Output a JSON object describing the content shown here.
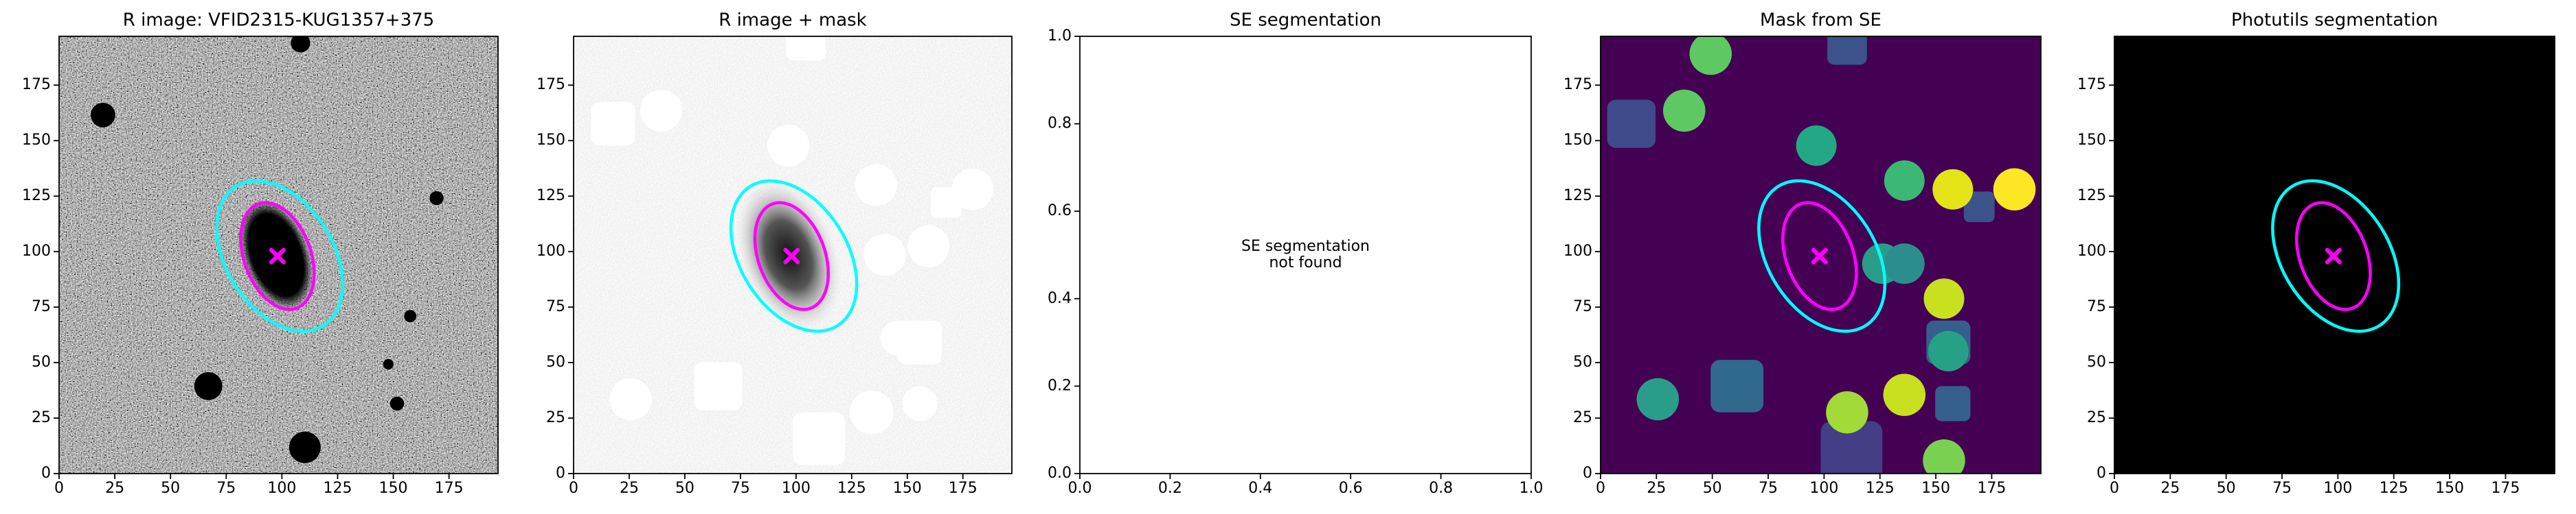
{
  "chart_data": [
    {
      "type": "image",
      "cmap": "gray",
      "title": "R image: VFID2315-KUG1357+375",
      "xlim": [
        0,
        197
      ],
      "ylim": [
        0,
        197
      ],
      "xticks": [
        0,
        25,
        50,
        75,
        100,
        125,
        150,
        175
      ],
      "yticks": [
        0,
        25,
        50,
        75,
        100,
        125,
        150,
        175
      ],
      "ellipses": [
        {
          "color": "#ff00ff",
          "x": 98,
          "y": 98,
          "width": 30,
          "height": 50,
          "angle": 20
        },
        {
          "color": "#00ffff",
          "x": 99,
          "y": 98,
          "width": 48,
          "height": 74,
          "angle": 32
        }
      ],
      "marker": {
        "color": "#ff00ff",
        "x": 98,
        "y": 98
      }
    },
    {
      "type": "image",
      "cmap": "gray_r",
      "title": "R image + mask",
      "xlim": [
        0,
        197
      ],
      "ylim": [
        0,
        197
      ],
      "xticks": [
        0,
        25,
        50,
        75,
        100,
        125,
        150,
        175
      ],
      "yticks": [
        0,
        25,
        50,
        75,
        100,
        125,
        150,
        175
      ],
      "ellipses": [
        {
          "color": "#ff00ff",
          "x": 98,
          "y": 98,
          "width": 30,
          "height": 50,
          "angle": 20
        },
        {
          "color": "#00ffff",
          "x": 99,
          "y": 98,
          "width": 48,
          "height": 74,
          "angle": 32
        }
      ],
      "marker": {
        "color": "#ff00ff",
        "x": 98,
        "y": 98
      }
    },
    {
      "type": "empty",
      "title": "SE segmentation",
      "xlim": [
        0,
        1
      ],
      "ylim": [
        0,
        1
      ],
      "xticks": [
        {
          "value": 0,
          "label": "0.0"
        },
        0.2,
        0.4,
        0.6,
        0.8,
        {
          "value": 1,
          "label": "1.0"
        }
      ],
      "yticks": [
        {
          "value": 0,
          "label": "0.0"
        },
        0.2,
        0.4,
        0.6,
        0.8,
        {
          "value": 1,
          "label": "1.0"
        }
      ],
      "annotation": [
        "SE segmentation",
        "not found"
      ]
    },
    {
      "type": "image",
      "cmap": "viridis",
      "title": "Mask from SE",
      "xlim": [
        0,
        197
      ],
      "ylim": [
        0,
        197
      ],
      "xticks": [
        0,
        25,
        50,
        75,
        100,
        125,
        150,
        175
      ],
      "yticks": [
        0,
        25,
        50,
        75,
        100,
        125,
        150,
        175
      ],
      "ellipses": [
        {
          "color": "#ff00ff",
          "x": 98,
          "y": 98,
          "width": 30,
          "height": 50,
          "angle": 20
        },
        {
          "color": "#00ffff",
          "x": 99,
          "y": 98,
          "width": 48,
          "height": 74,
          "angle": 32
        }
      ],
      "marker": {
        "color": "#ff00ff",
        "x": 98,
        "y": 98
      }
    },
    {
      "type": "image",
      "cmap": "black",
      "title": "Photutils segmentation",
      "xlim": [
        0,
        197
      ],
      "ylim": [
        0,
        197
      ],
      "xticks": [
        0,
        25,
        50,
        75,
        100,
        125,
        150,
        175
      ],
      "yticks": [
        0,
        25,
        50,
        75,
        100,
        125,
        150,
        175
      ],
      "ellipses": [
        {
          "color": "#ff00ff",
          "x": 98,
          "y": 98,
          "width": 30,
          "height": 50,
          "angle": 20
        },
        {
          "color": "#00ffff",
          "x": 99,
          "y": 98,
          "width": 48,
          "height": 74,
          "angle": 32
        }
      ],
      "marker": {
        "color": "#ff00ff",
        "x": 98,
        "y": 98
      }
    }
  ]
}
